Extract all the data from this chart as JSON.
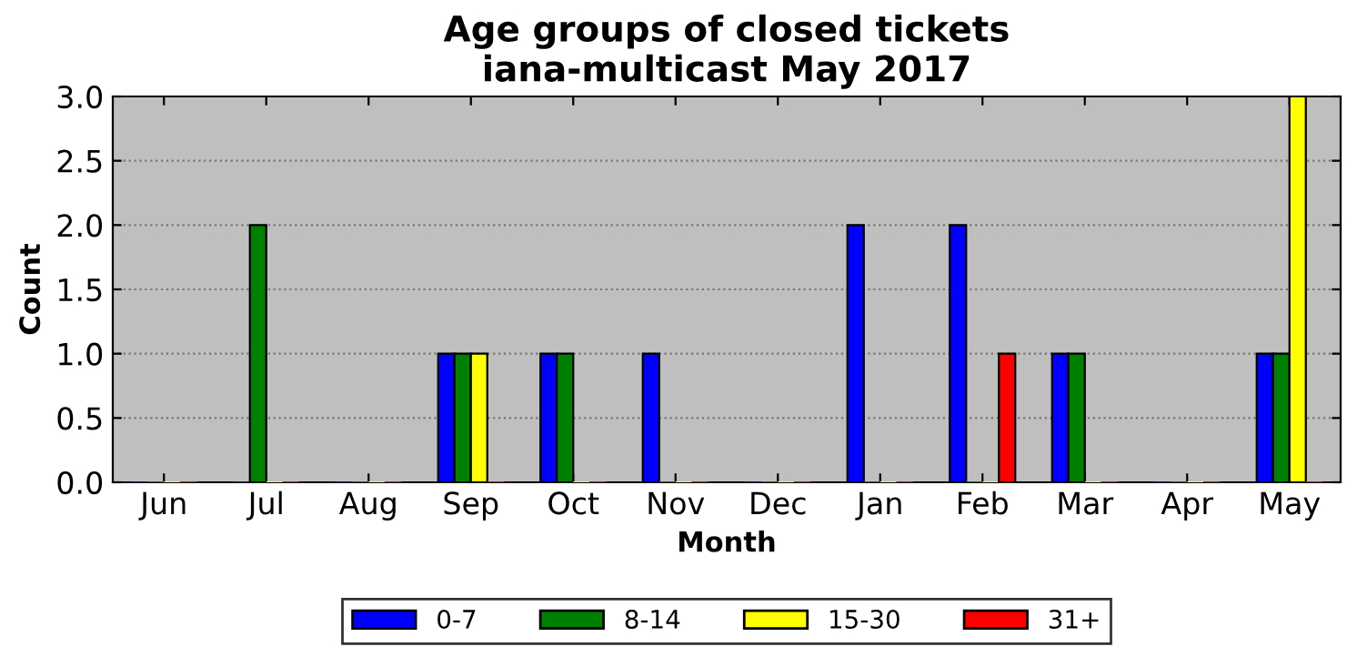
{
  "chart_data": {
    "type": "bar",
    "title": "Age groups of closed tickets\niana-multicast May 2017",
    "xlabel": "Month",
    "ylabel": "Count",
    "categories": [
      "Jun",
      "Jul",
      "Aug",
      "Sep",
      "Oct",
      "Nov",
      "Dec",
      "Jan",
      "Feb",
      "Mar",
      "Apr",
      "May"
    ],
    "series": [
      {
        "name": "0-7",
        "color": "#0000ff",
        "values": [
          0,
          0,
          0,
          1,
          1,
          1,
          0,
          2,
          2,
          1,
          0,
          1
        ]
      },
      {
        "name": "8-14",
        "color": "#008000",
        "values": [
          0,
          2,
          0,
          1,
          1,
          0,
          0,
          0,
          0,
          1,
          0,
          1
        ]
      },
      {
        "name": "15-30",
        "color": "#ffff00",
        "values": [
          0,
          0,
          0,
          1,
          0,
          0,
          0,
          0,
          0,
          0,
          0,
          3
        ]
      },
      {
        "name": "31+",
        "color": "#ff0000",
        "values": [
          0,
          0,
          0,
          0,
          0,
          0,
          0,
          0,
          1,
          0,
          0,
          0
        ]
      }
    ],
    "ylim": [
      0,
      3
    ],
    "yticks": [
      {
        "value": 0,
        "label": "0.0"
      },
      {
        "value": 0.5,
        "label": "0.5"
      },
      {
        "value": 1,
        "label": "1.0"
      },
      {
        "value": 1.5,
        "label": "1.5"
      },
      {
        "value": 2,
        "label": "2.0"
      },
      {
        "value": 2.5,
        "label": "2.5"
      },
      {
        "value": 3,
        "label": "3.0"
      }
    ],
    "grid": "y",
    "legend": "bottom"
  }
}
